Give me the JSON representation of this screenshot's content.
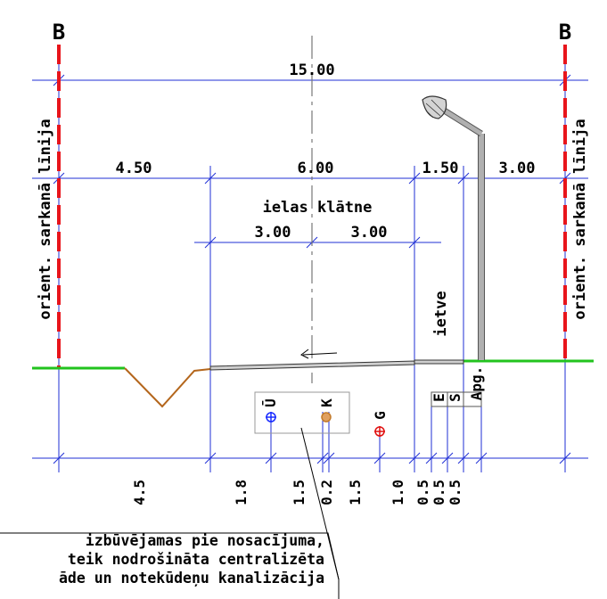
{
  "markers": {
    "left": "B",
    "right": "B"
  },
  "dimensions_top": {
    "total": "15.00",
    "left_zone": "4.50",
    "carriageway": "6.00",
    "sidewalk": "1.50",
    "right_zone": "3.00",
    "lane_left": "3.00",
    "lane_right": "3.00"
  },
  "labels": {
    "carriageway": "ielas klātne",
    "sidewalk": "ietve",
    "red_line_left": "orient. sarkanā līnija",
    "red_line_right": "orient. sarkanā līnija",
    "lighting": "Apg.",
    "electric": "E",
    "comms": "S",
    "water": "Ū",
    "sewer": "K",
    "gas": "G"
  },
  "dimensions_bottom": [
    "4.5",
    "1.8",
    "1.5",
    "0.2",
    "1.5",
    "1.0",
    "0.5",
    "0.5",
    "0.5"
  ],
  "note_lines": [
    "izbūvējamas  pie nosacījuma,",
    "teik nodrošināta centralizēta",
    "āde un notekūdeņu kanalizācija"
  ],
  "colors": {
    "red_line": "#e8141b",
    "ground": "#22c31e",
    "dimension": "#1f2fd6",
    "ditch": "#b4661c",
    "water": "#1a2cff",
    "sewer": "#c27a2a",
    "gas": "#e01010"
  }
}
